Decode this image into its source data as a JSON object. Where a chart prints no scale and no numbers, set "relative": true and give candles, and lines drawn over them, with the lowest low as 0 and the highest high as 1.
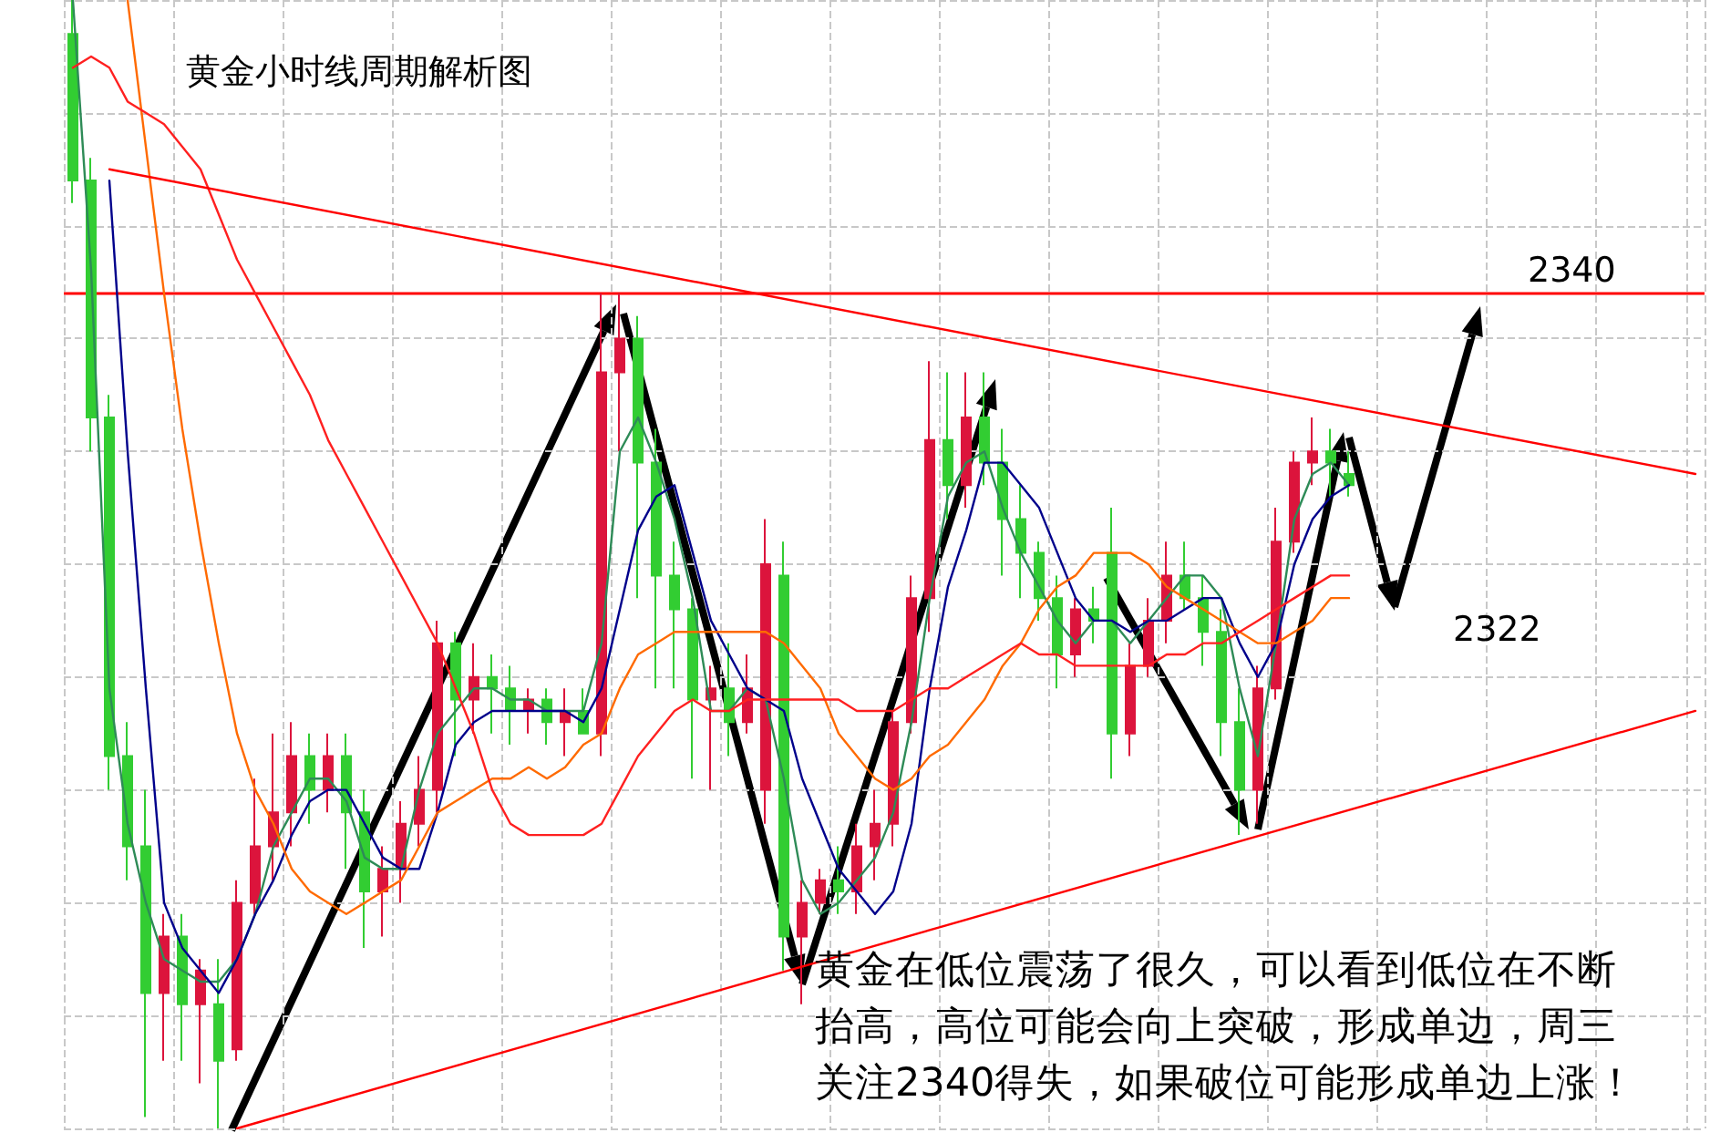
{
  "chart_data": {
    "type": "candlestick",
    "title": "黄金小时线周期解析图",
    "relative": true,
    "grid": true,
    "marker": "none",
    "line_style": "solid",
    "categories": [
      null,
      null,
      null,
      null,
      null,
      null,
      null,
      null,
      null,
      null,
      null,
      null,
      null,
      null,
      null,
      null,
      null,
      null,
      null,
      null,
      null,
      null,
      null,
      null,
      null,
      null,
      null,
      null,
      null,
      null,
      null,
      null,
      null,
      null,
      null,
      null,
      null,
      null,
      null,
      null,
      null,
      null,
      null,
      null,
      null,
      null,
      null,
      null,
      null,
      null,
      null,
      null,
      null,
      null,
      null,
      null,
      null,
      null,
      null,
      null,
      null,
      null,
      null,
      null,
      null,
      null,
      null,
      null,
      null,
      null,
      null,
      null,
      null,
      null,
      null,
      null,
      null,
      null,
      null,
      null,
      null,
      null,
      null,
      null,
      null,
      null,
      null,
      null,
      null,
      null
    ],
    "ohlc": [
      [
        0.97,
        1.0,
        0.82,
        0.84
      ],
      [
        0.84,
        0.86,
        0.6,
        0.63
      ],
      [
        0.63,
        0.65,
        0.3,
        0.33
      ],
      [
        0.33,
        0.36,
        0.22,
        0.25
      ],
      [
        0.25,
        0.3,
        0.01,
        0.12
      ],
      [
        0.12,
        0.19,
        0.06,
        0.17
      ],
      [
        0.17,
        0.19,
        0.06,
        0.11
      ],
      [
        0.11,
        0.15,
        0.04,
        0.14
      ],
      [
        0.11,
        0.15,
        0,
        0.06
      ],
      [
        0.07,
        0.22,
        0.06,
        0.2
      ],
      [
        0.2,
        0.31,
        0.19,
        0.25
      ],
      [
        0.25,
        0.35,
        0.22,
        0.28
      ],
      [
        0.28,
        0.36,
        0.25,
        0.33
      ],
      [
        0.33,
        0.35,
        0.27,
        0.3
      ],
      [
        0.3,
        0.35,
        0.28,
        0.33
      ],
      [
        0.33,
        0.35,
        0.23,
        0.28
      ],
      [
        0.28,
        0.3,
        0.16,
        0.21
      ],
      [
        0.21,
        0.25,
        0.17,
        0.23
      ],
      [
        0.23,
        0.29,
        0.2,
        0.27
      ],
      [
        0.27,
        0.33,
        0.25,
        0.3
      ],
      [
        0.3,
        0.45,
        0.28,
        0.43
      ],
      [
        0.43,
        0.44,
        0.33,
        0.38
      ],
      [
        0.38,
        0.43,
        0.35,
        0.4
      ],
      [
        0.4,
        0.42,
        0.35,
        0.39
      ],
      [
        0.39,
        0.41,
        0.34,
        0.37
      ],
      [
        0.37,
        0.39,
        0.35,
        0.38
      ],
      [
        0.38,
        0.39,
        0.34,
        0.36
      ],
      [
        0.36,
        0.39,
        0.33,
        0.37
      ],
      [
        0.37,
        0.39,
        0.35,
        0.35
      ],
      [
        0.35,
        0.74,
        0.33,
        0.67
      ],
      [
        0.67,
        0.74,
        0.6,
        0.7
      ],
      [
        0.7,
        0.72,
        0.47,
        0.59
      ],
      [
        0.59,
        0.62,
        0.39,
        0.49
      ],
      [
        0.49,
        0.52,
        0.39,
        0.46
      ],
      [
        0.46,
        0.47,
        0.31,
        0.38
      ],
      [
        0.38,
        0.41,
        0.3,
        0.39
      ],
      [
        0.39,
        0.43,
        0.33,
        0.36
      ],
      [
        0.36,
        0.42,
        0.35,
        0.39
      ],
      [
        0.3,
        0.54,
        0.27,
        0.5
      ],
      [
        0.49,
        0.52,
        0.14,
        0.17
      ],
      [
        0.17,
        0.22,
        0.11,
        0.2
      ],
      [
        0.2,
        0.23,
        0.19,
        0.22
      ],
      [
        0.22,
        0.25,
        0.19,
        0.21
      ],
      [
        0.21,
        0.27,
        0.19,
        0.25
      ],
      [
        0.25,
        0.3,
        0.22,
        0.27
      ],
      [
        0.27,
        0.37,
        0.25,
        0.36
      ],
      [
        0.36,
        0.49,
        0.35,
        0.47
      ],
      [
        0.47,
        0.68,
        0.44,
        0.61
      ],
      [
        0.61,
        0.67,
        0.54,
        0.57
      ],
      [
        0.57,
        0.67,
        0.55,
        0.63
      ],
      [
        0.63,
        0.67,
        0.57,
        0.59
      ],
      [
        0.59,
        0.62,
        0.49,
        0.54
      ],
      [
        0.54,
        0.57,
        0.47,
        0.51
      ],
      [
        0.51,
        0.52,
        0.45,
        0.47
      ],
      [
        0.47,
        0.49,
        0.39,
        0.42
      ],
      [
        0.42,
        0.47,
        0.4,
        0.46
      ],
      [
        0.46,
        0.48,
        0.43,
        0.45
      ],
      [
        0.51,
        0.55,
        0.31,
        0.35
      ],
      [
        0.35,
        0.43,
        0.33,
        0.41
      ],
      [
        0.41,
        0.47,
        0.4,
        0.45
      ],
      [
        0.45,
        0.52,
        0.43,
        0.49
      ],
      [
        0.49,
        0.52,
        0.46,
        0.47
      ],
      [
        0.47,
        0.49,
        0.41,
        0.44
      ],
      [
        0.44,
        0.46,
        0.33,
        0.36
      ],
      [
        0.36,
        0.39,
        0.26,
        0.3
      ],
      [
        0.3,
        0.41,
        0.27,
        0.39
      ],
      [
        0.39,
        0.55,
        0.38,
        0.52
      ],
      [
        0.52,
        0.6,
        0.51,
        0.59
      ],
      [
        0.59,
        0.63,
        0.57,
        0.6
      ],
      [
        0.6,
        0.62,
        0.56,
        0.59
      ],
      [
        0.58,
        0.6,
        0.56,
        0.57
      ],
      null,
      null,
      null,
      null,
      null,
      null,
      null,
      null,
      null,
      null,
      null,
      null,
      null,
      null,
      null,
      null,
      null,
      null,
      null
    ],
    "colors": [
      "#32cd32",
      "#32cd32",
      "#32cd32",
      "#32cd32",
      "#32cd32",
      "#dc143c",
      "#32cd32",
      "#dc143c",
      "#32cd32",
      "#dc143c",
      "#dc143c",
      "#dc143c",
      "#dc143c",
      "#32cd32",
      "#dc143c",
      "#32cd32",
      "#32cd32",
      "#dc143c",
      "#dc143c",
      "#dc143c",
      "#dc143c",
      "#32cd32",
      "#dc143c",
      "#32cd32",
      "#32cd32",
      "#dc143c",
      "#32cd32",
      "#dc143c",
      "#32cd32",
      "#dc143c",
      "#dc143c",
      "#32cd32",
      "#32cd32",
      "#32cd32",
      "#32cd32",
      "#dc143c",
      "#32cd32",
      "#dc143c",
      "#dc143c",
      "#32cd32",
      "#dc143c",
      "#dc143c",
      "#32cd32",
      "#dc143c",
      "#dc143c",
      "#dc143c",
      "#dc143c",
      "#dc143c",
      "#32cd32",
      "#dc143c",
      "#32cd32",
      "#32cd32",
      "#32cd32",
      "#32cd32",
      "#32cd32",
      "#dc143c",
      "#32cd32",
      "#32cd32",
      "#dc143c",
      "#dc143c",
      "#dc143c",
      "#32cd32",
      "#32cd32",
      "#32cd32",
      "#32cd32",
      "#dc143c",
      "#dc143c",
      "#dc143c",
      "#dc143c",
      "#32cd32",
      "#32cd32",
      null,
      null,
      null,
      null,
      null,
      null,
      null,
      null,
      null,
      null,
      null,
      null,
      null,
      null,
      null,
      null,
      null,
      null,
      null
    ],
    "series": [
      {
        "type": "line",
        "color": "#2e8b57",
        "values": [
          1.0,
          0.76,
          0.39,
          0.27,
          0.2,
          0.15,
          0.14,
          0.13,
          0.13,
          0.15,
          0.19,
          0.25,
          0.28,
          0.31,
          0.31,
          0.29,
          0.24,
          0.23,
          0.23,
          0.3,
          0.35,
          0.37,
          0.39,
          0.39,
          0.38,
          0.38,
          0.37,
          0.37,
          0.37,
          0.43,
          0.6,
          0.63,
          0.59,
          0.54,
          0.47,
          0.37,
          0.37,
          0.39,
          0.38,
          0.31,
          0.22,
          0.19,
          0.2,
          0.22,
          0.24,
          0.28,
          0.36,
          0.47,
          0.56,
          0.59,
          0.6,
          0.55,
          0.51,
          0.48,
          0.45,
          0.43,
          0.45,
          0.45,
          0.43,
          0.45,
          0.47,
          0.49,
          0.49,
          0.47,
          0.39,
          0.33,
          0.43,
          0.54,
          0.58,
          0.59,
          0.57,
          null,
          null,
          null,
          null,
          null,
          null,
          null,
          null,
          null,
          null,
          null,
          null,
          null,
          null,
          null,
          null,
          null,
          null,
          null
        ]
      },
      {
        "type": "line",
        "color": "#00008b",
        "values": [
          null,
          null,
          0.84,
          0.6,
          0.39,
          0.2,
          0.16,
          0.14,
          0.12,
          0.15,
          0.19,
          0.22,
          0.26,
          0.29,
          0.3,
          0.3,
          0.27,
          0.24,
          0.23,
          0.23,
          0.28,
          0.34,
          0.36,
          0.37,
          0.37,
          0.37,
          0.37,
          0.37,
          0.36,
          0.39,
          0.46,
          0.53,
          0.56,
          0.57,
          0.51,
          0.45,
          0.42,
          0.39,
          0.38,
          0.37,
          0.31,
          0.27,
          0.23,
          0.21,
          0.19,
          0.21,
          0.27,
          0.39,
          0.48,
          0.53,
          0.59,
          0.59,
          0.57,
          0.55,
          0.51,
          0.47,
          0.45,
          0.45,
          0.44,
          0.45,
          0.45,
          0.46,
          0.47,
          0.47,
          0.43,
          0.4,
          0.43,
          0.5,
          0.54,
          0.56,
          0.57,
          null,
          null,
          null,
          null,
          null,
          null,
          null,
          null,
          null,
          null,
          null,
          null,
          null,
          null,
          null,
          null,
          null,
          null,
          null
        ]
      },
      {
        "type": "line",
        "color": "#ff6a00",
        "values": [
          null,
          null,
          null,
          1.0,
          0.87,
          0.74,
          0.62,
          0.52,
          0.43,
          0.35,
          0.3,
          0.27,
          0.23,
          0.21,
          0.2,
          0.19,
          0.2,
          0.21,
          0.22,
          0.25,
          0.28,
          0.29,
          0.3,
          0.31,
          0.31,
          0.32,
          0.31,
          0.32,
          0.34,
          0.35,
          0.39,
          0.42,
          0.43,
          0.44,
          0.44,
          0.44,
          0.44,
          0.44,
          0.44,
          0.43,
          0.41,
          0.39,
          0.35,
          0.33,
          0.31,
          0.3,
          0.31,
          0.33,
          0.34,
          0.36,
          0.38,
          0.41,
          0.43,
          0.46,
          0.48,
          0.49,
          0.51,
          0.51,
          0.51,
          0.5,
          0.48,
          0.47,
          0.46,
          0.45,
          0.44,
          0.43,
          0.43,
          0.44,
          0.45,
          0.47,
          0.47,
          null,
          null,
          null,
          null,
          null,
          null,
          null,
          null,
          null,
          null,
          null,
          null,
          null,
          null,
          null,
          null,
          null,
          null,
          null
        ]
      },
      {
        "type": "line",
        "color": "#ff2020",
        "values": [
          0.94,
          0.95,
          0.94,
          0.91,
          0.9,
          0.89,
          0.87,
          0.85,
          0.81,
          0.77,
          0.74,
          0.71,
          0.68,
          0.65,
          0.61,
          0.58,
          0.55,
          0.52,
          0.49,
          0.46,
          0.43,
          0.39,
          0.35,
          0.3,
          0.27,
          0.26,
          0.26,
          0.26,
          0.26,
          0.27,
          0.3,
          0.33,
          0.35,
          0.37,
          0.38,
          0.37,
          0.37,
          0.38,
          0.38,
          0.38,
          0.38,
          0.38,
          0.38,
          0.37,
          0.37,
          0.37,
          0.38,
          0.39,
          0.39,
          0.4,
          0.41,
          0.42,
          0.43,
          0.42,
          0.42,
          0.41,
          0.41,
          0.41,
          0.41,
          0.41,
          0.42,
          0.42,
          0.43,
          0.43,
          0.44,
          0.45,
          0.46,
          0.47,
          0.48,
          0.49,
          0.49,
          null,
          null,
          null,
          null,
          null,
          null,
          null,
          null,
          null,
          null,
          null,
          null,
          null,
          null,
          null,
          null,
          null,
          null,
          null
        ]
      },
      {
        "type": "line",
        "color": "#ff0000",
        "values": [
          null,
          null,
          0.85,
          null,
          null,
          null,
          null,
          null,
          null,
          null,
          null,
          null,
          null,
          null,
          null,
          null,
          null,
          null,
          null,
          null,
          null,
          null,
          null,
          null,
          null,
          null,
          null,
          null,
          null,
          null,
          null,
          null,
          null,
          null,
          null,
          null,
          null,
          null,
          null,
          null,
          null,
          null,
          null,
          null,
          null,
          null,
          null,
          null,
          null,
          null,
          null,
          null,
          null,
          null,
          null,
          null,
          null,
          null,
          null,
          null,
          null,
          null,
          null,
          null,
          null,
          null,
          null,
          null,
          null,
          null,
          null,
          null,
          null,
          null,
          null,
          null,
          null,
          null,
          null,
          null,
          null,
          null,
          null,
          null,
          null,
          null,
          null,
          null,
          null,
          0.58
        ]
      },
      {
        "type": "line",
        "color": "#ff0000",
        "values": [
          null,
          null,
          null,
          null,
          null,
          null,
          null,
          null,
          null,
          0.0,
          null,
          null,
          null,
          null,
          null,
          null,
          null,
          null,
          null,
          null,
          null,
          null,
          null,
          null,
          null,
          null,
          null,
          null,
          null,
          null,
          null,
          null,
          null,
          null,
          null,
          null,
          null,
          null,
          null,
          null,
          null,
          null,
          null,
          null,
          null,
          null,
          null,
          null,
          null,
          null,
          null,
          null,
          null,
          null,
          null,
          null,
          null,
          null,
          null,
          null,
          null,
          null,
          null,
          null,
          null,
          null,
          null,
          null,
          null,
          null,
          null,
          null,
          null,
          null,
          null,
          null,
          null,
          null,
          null,
          null,
          null,
          null,
          null,
          null,
          null,
          null,
          null,
          null,
          null,
          0.37
        ]
      }
    ],
    "ref_lines": [
      {
        "axis": "y",
        "value": 0.74,
        "color": "#ff0000"
      }
    ],
    "annotations": [
      "黄金在低位震荡了很久，可以看到低位在不断抬高，高位可能会向上突破，形成单边，周三关注2340得失，如果破位可能形成单边上涨！",
      "2322",
      "2340"
    ]
  }
}
